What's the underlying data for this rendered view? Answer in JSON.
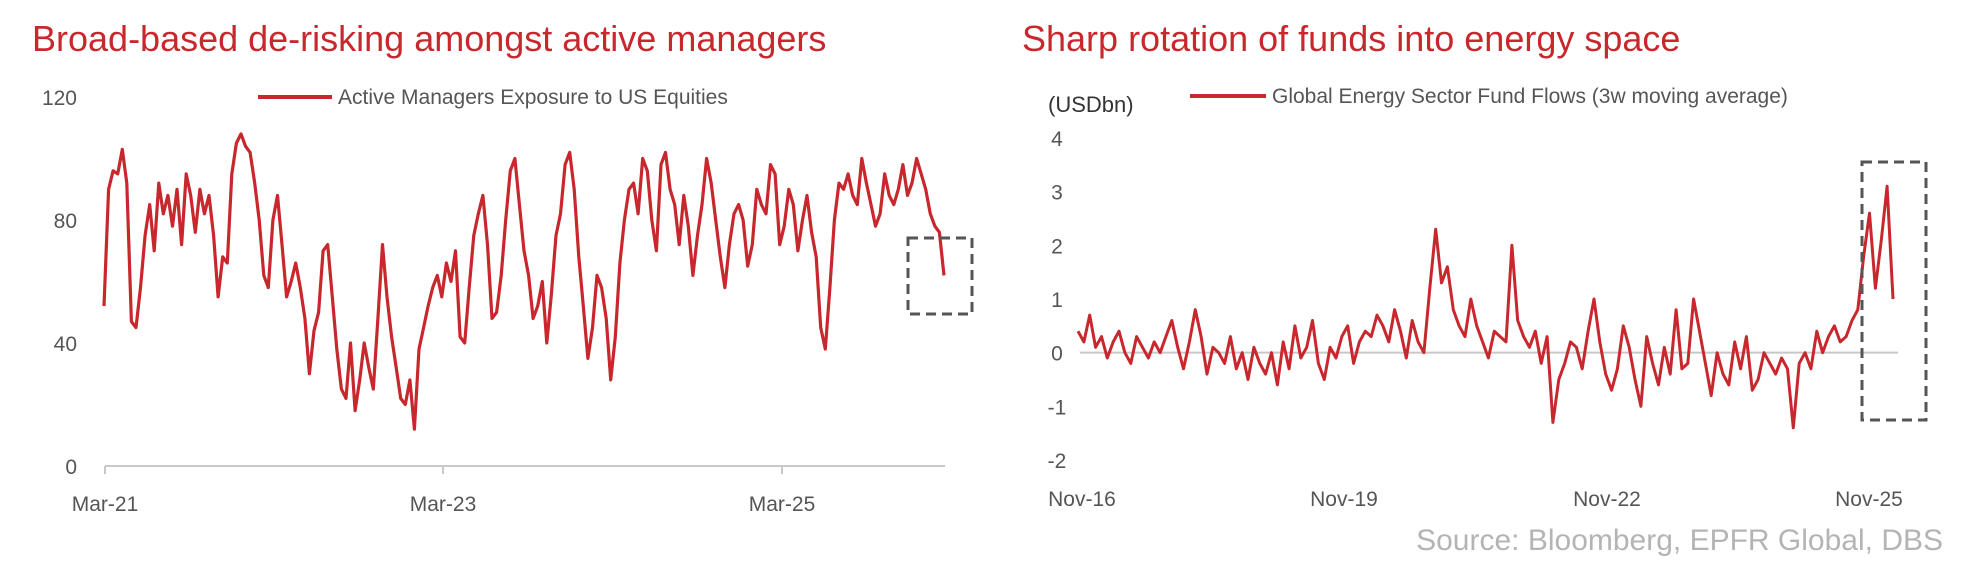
{
  "source": "Source: Bloomberg, EPFR Global, DBS",
  "chart_data": [
    {
      "type": "line",
      "title": "Broad-based de-risking amongst active managers",
      "xlabel": "",
      "ylabel": "",
      "ylim": [
        0,
        120
      ],
      "yticks": [
        "120",
        "80",
        "40",
        "0"
      ],
      "xticks": [
        "Mar-21",
        "Mar-23",
        "Mar-25"
      ],
      "x_range": [
        "2021-03",
        "2026-02"
      ],
      "grid": false,
      "legend_position": "top-center",
      "highlight_box": "dashed box around final readings (~late 2025 to early 2026)",
      "series": [
        {
          "name": "Active Managers Exposure to US Equities",
          "color": "#c8282d",
          "values": [
            52,
            90,
            96,
            95,
            103,
            92,
            47,
            45,
            58,
            75,
            85,
            70,
            92,
            82,
            88,
            78,
            90,
            72,
            95,
            88,
            76,
            90,
            82,
            88,
            75,
            55,
            68,
            66,
            95,
            105,
            108,
            104,
            102,
            92,
            80,
            62,
            58,
            80,
            88,
            72,
            55,
            60,
            66,
            58,
            48,
            30,
            44,
            50,
            70,
            72,
            55,
            38,
            25,
            22,
            40,
            18,
            28,
            40,
            32,
            25,
            48,
            72,
            55,
            42,
            32,
            22,
            20,
            28,
            12,
            38,
            45,
            52,
            58,
            62,
            55,
            66,
            60,
            70,
            42,
            40,
            58,
            75,
            82,
            88,
            72,
            48,
            50,
            62,
            80,
            96,
            100,
            85,
            70,
            62,
            48,
            52,
            60,
            40,
            56,
            75,
            82,
            98,
            102,
            90,
            68,
            52,
            35,
            45,
            62,
            58,
            48,
            28,
            42,
            66,
            80,
            90,
            92,
            82,
            100,
            96,
            80,
            70,
            98,
            102,
            90,
            85,
            72,
            88,
            78,
            62,
            75,
            85,
            100,
            92,
            80,
            68,
            58,
            72,
            82,
            85,
            80,
            65,
            72,
            90,
            85,
            82,
            98,
            95,
            72,
            78,
            90,
            85,
            70,
            80,
            88,
            76,
            68,
            45,
            38,
            58,
            80,
            92,
            90,
            95,
            88,
            85,
            100,
            92,
            85,
            78,
            82,
            95,
            88,
            85,
            90,
            98,
            88,
            92,
            100,
            95,
            90,
            82,
            78,
            76,
            62
          ]
        }
      ]
    },
    {
      "type": "line",
      "title": "Sharp rotation of funds into energy space",
      "unit_label": "(USDbn)",
      "xlabel": "",
      "ylabel": "",
      "ylim": [
        -2,
        4
      ],
      "yticks": [
        "4",
        "3",
        "2",
        "1",
        "0",
        "-1",
        "-2"
      ],
      "xticks": [
        "Nov-16",
        "Nov-19",
        "Nov-22",
        "Nov-25"
      ],
      "x_range": [
        "2016-11",
        "2025-12"
      ],
      "grid": false,
      "legend_position": "top-center",
      "highlight_box": "dashed box around final readings (late 2025)",
      "series": [
        {
          "name": "Global Energy Sector Fund Flows (3w moving average)",
          "color": "#c8282d",
          "values": [
            0.4,
            0.2,
            0.7,
            0.1,
            0.3,
            -0.1,
            0.2,
            0.4,
            0.0,
            -0.2,
            0.3,
            0.1,
            -0.1,
            0.2,
            0.0,
            0.3,
            0.6,
            0.1,
            -0.3,
            0.2,
            0.8,
            0.3,
            -0.4,
            0.1,
            0.0,
            -0.2,
            0.3,
            -0.3,
            0.0,
            -0.5,
            0.1,
            -0.2,
            -0.4,
            0.0,
            -0.6,
            0.2,
            -0.3,
            0.5,
            -0.1,
            0.1,
            0.6,
            -0.2,
            -0.5,
            0.1,
            -0.1,
            0.3,
            0.5,
            -0.2,
            0.2,
            0.4,
            0.3,
            0.7,
            0.5,
            0.2,
            0.8,
            0.4,
            -0.1,
            0.6,
            0.2,
            0.0,
            1.2,
            2.3,
            1.3,
            1.6,
            0.8,
            0.5,
            0.3,
            1.0,
            0.5,
            0.2,
            -0.1,
            0.4,
            0.3,
            0.2,
            2.0,
            0.6,
            0.3,
            0.1,
            0.4,
            -0.2,
            0.3,
            -1.3,
            -0.5,
            -0.2,
            0.2,
            0.1,
            -0.3,
            0.4,
            1.0,
            0.2,
            -0.4,
            -0.7,
            -0.3,
            0.5,
            0.1,
            -0.5,
            -1.0,
            0.3,
            -0.2,
            -0.6,
            0.1,
            -0.4,
            0.8,
            -0.3,
            -0.2,
            1.0,
            0.4,
            -0.2,
            -0.8,
            0.0,
            -0.4,
            -0.6,
            0.2,
            -0.3,
            0.3,
            -0.7,
            -0.5,
            0.0,
            -0.2,
            -0.4,
            -0.1,
            -0.3,
            -1.4,
            -0.2,
            0.0,
            -0.3,
            0.4,
            0.0,
            0.3,
            0.5,
            0.2,
            0.3,
            0.6,
            0.8,
            1.8,
            2.6,
            1.2,
            2.1,
            3.1,
            1.0
          ]
        }
      ]
    }
  ]
}
